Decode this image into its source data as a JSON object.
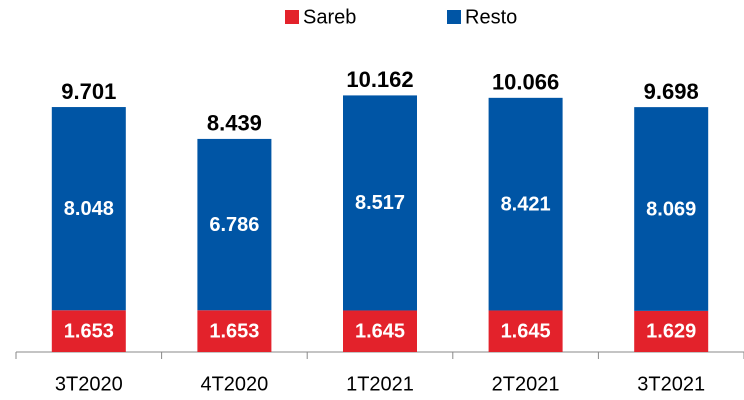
{
  "chart_data": {
    "type": "stacked_bar",
    "categories": [
      "3T2020",
      "4T2020",
      "1T2021",
      "2T2021",
      "3T2021"
    ],
    "series": [
      {
        "name": "Sareb",
        "color": "#e3222b",
        "values": [
          1.653,
          1.653,
          1.645,
          1.645,
          1.629
        ]
      },
      {
        "name": "Resto",
        "color": "#0055a5",
        "values": [
          8.048,
          6.786,
          8.517,
          8.421,
          8.069
        ]
      }
    ],
    "totals": [
      9.701,
      8.439,
      10.162,
      10.066,
      9.698
    ],
    "ylim": [
      0,
      12
    ],
    "legend": "top"
  }
}
